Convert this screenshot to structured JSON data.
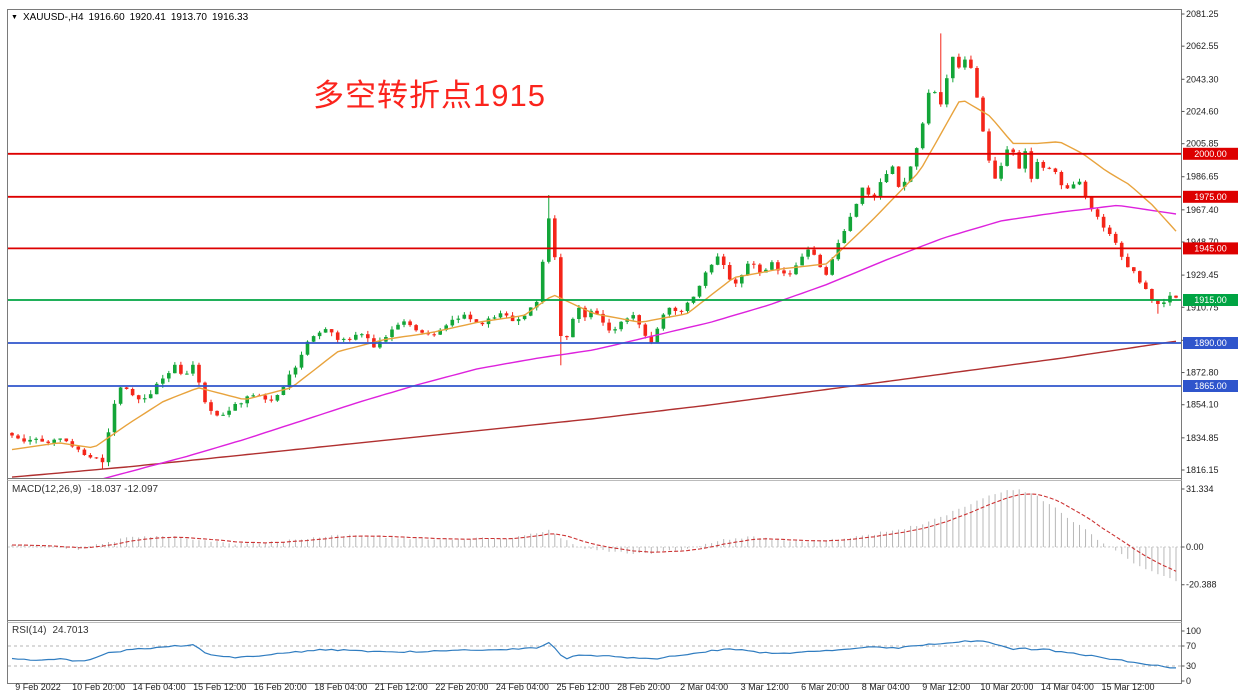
{
  "header": {
    "collapse_icon": "▼",
    "symbol_period": "XAUUSD-,H4",
    "open": "1916.60",
    "high": "1920.41",
    "low": "1913.70",
    "close": "1916.33"
  },
  "annotation": {
    "text": "多空转折点1915",
    "color": "#fb241d"
  },
  "price_axis": {
    "max": 2081.25,
    "min": 1816.15,
    "labels": [
      2081.25,
      2062.55,
      2043.3,
      2024.6,
      2005.85,
      1986.65,
      1967.4,
      1948.7,
      1929.45,
      1910.75,
      1891.55,
      1872.8,
      1854.1,
      1834.85,
      1816.15
    ]
  },
  "levels": [
    {
      "price": 2000.0,
      "label": "2000.00",
      "color": "#dd0000"
    },
    {
      "price": 1975.0,
      "label": "1975.00",
      "color": "#dd0000"
    },
    {
      "price": 1945.0,
      "label": "1945.00",
      "color": "#dd0000"
    },
    {
      "price": 1915.0,
      "label": "1915.00",
      "color": "#00a443"
    },
    {
      "price": 1890.0,
      "label": "1890.00",
      "color": "#2f55cc"
    },
    {
      "price": 1865.0,
      "label": "1865.00",
      "color": "#2f55cc"
    }
  ],
  "time_axis": {
    "labels": [
      "9 Feb 2022",
      "10 Feb 20:00",
      "14 Feb 04:00",
      "15 Feb 12:00",
      "16 Feb 20:00",
      "18 Feb 04:00",
      "21 Feb 12:00",
      "22 Feb 20:00",
      "24 Feb 04:00",
      "25 Feb 12:00",
      "28 Feb 20:00",
      "2 Mar 04:00",
      "3 Mar 12:00",
      "6 Mar 20:00",
      "8 Mar 04:00",
      "9 Mar 12:00",
      "10 Mar 20:00",
      "14 Mar 04:00",
      "15 Mar 12:00"
    ]
  },
  "macd_panel": {
    "label": "MACD(12,26,9)",
    "values": "-18.037 -12.097",
    "scale": [
      {
        "value": 31.334,
        "label": "31.334"
      },
      {
        "value": 0,
        "label": "0.00"
      },
      {
        "value": -20.388,
        "label": "-20.388"
      }
    ]
  },
  "rsi_panel": {
    "label": "RSI(14)",
    "value": "24.7013",
    "scale": [
      {
        "value": 100,
        "label": "100"
      },
      {
        "value": 70,
        "label": "70"
      },
      {
        "value": 30,
        "label": "30"
      },
      {
        "value": 0,
        "label": "0"
      }
    ],
    "guide_levels": [
      70,
      30
    ]
  },
  "chart_data": {
    "type": "candlestick",
    "symbol": "XAUUSD-",
    "timeframe": "H4",
    "bars": 194,
    "last_close": 1916.33,
    "ylim": [
      1816.15,
      2081.25
    ],
    "price_path": [
      [
        0,
        1836
      ],
      [
        0.01,
        1834
      ],
      [
        0.02,
        1836
      ],
      [
        0.03,
        1833
      ],
      [
        0.04,
        1835
      ],
      [
        0.05,
        1830
      ],
      [
        0.06,
        1826
      ],
      [
        0.07,
        1824
      ],
      [
        0.078,
        1821
      ],
      [
        0.085,
        1845
      ],
      [
        0.092,
        1866
      ],
      [
        0.1,
        1862
      ],
      [
        0.11,
        1856
      ],
      [
        0.12,
        1862
      ],
      [
        0.13,
        1870
      ],
      [
        0.14,
        1878
      ],
      [
        0.148,
        1871
      ],
      [
        0.155,
        1879
      ],
      [
        0.163,
        1860
      ],
      [
        0.17,
        1850
      ],
      [
        0.18,
        1848
      ],
      [
        0.19,
        1853
      ],
      [
        0.2,
        1858
      ],
      [
        0.21,
        1862
      ],
      [
        0.22,
        1856
      ],
      [
        0.23,
        1862
      ],
      [
        0.24,
        1872
      ],
      [
        0.25,
        1886
      ],
      [
        0.26,
        1896
      ],
      [
        0.27,
        1899
      ],
      [
        0.28,
        1890
      ],
      [
        0.29,
        1893
      ],
      [
        0.3,
        1897
      ],
      [
        0.31,
        1888
      ],
      [
        0.32,
        1894
      ],
      [
        0.33,
        1899
      ],
      [
        0.34,
        1902
      ],
      [
        0.35,
        1896
      ],
      [
        0.36,
        1893
      ],
      [
        0.37,
        1898
      ],
      [
        0.38,
        1903
      ],
      [
        0.39,
        1906
      ],
      [
        0.4,
        1900
      ],
      [
        0.41,
        1904
      ],
      [
        0.42,
        1908
      ],
      [
        0.43,
        1903
      ],
      [
        0.44,
        1907
      ],
      [
        0.45,
        1912
      ],
      [
        0.456,
        1936
      ],
      [
        0.461,
        1962
      ],
      [
        0.466,
        1944
      ],
      [
        0.47,
        1898
      ],
      [
        0.474,
        1884
      ],
      [
        0.48,
        1902
      ],
      [
        0.486,
        1912
      ],
      [
        0.492,
        1906
      ],
      [
        0.5,
        1910
      ],
      [
        0.508,
        1902
      ],
      [
        0.516,
        1896
      ],
      [
        0.524,
        1902
      ],
      [
        0.532,
        1907
      ],
      [
        0.54,
        1898
      ],
      [
        0.548,
        1890
      ],
      [
        0.556,
        1902
      ],
      [
        0.564,
        1912
      ],
      [
        0.572,
        1906
      ],
      [
        0.58,
        1912
      ],
      [
        0.588,
        1918
      ],
      [
        0.596,
        1930
      ],
      [
        0.604,
        1941
      ],
      [
        0.612,
        1934
      ],
      [
        0.62,
        1924
      ],
      [
        0.628,
        1932
      ],
      [
        0.636,
        1938
      ],
      [
        0.644,
        1930
      ],
      [
        0.652,
        1938
      ],
      [
        0.66,
        1932
      ],
      [
        0.668,
        1928
      ],
      [
        0.676,
        1936
      ],
      [
        0.684,
        1944
      ],
      [
        0.692,
        1938
      ],
      [
        0.7,
        1930
      ],
      [
        0.708,
        1944
      ],
      [
        0.716,
        1958
      ],
      [
        0.724,
        1968
      ],
      [
        0.732,
        1982
      ],
      [
        0.74,
        1972
      ],
      [
        0.748,
        1986
      ],
      [
        0.756,
        1992
      ],
      [
        0.762,
        1980
      ],
      [
        0.77,
        1988
      ],
      [
        0.778,
        2004
      ],
      [
        0.786,
        2030
      ],
      [
        0.791,
        2044
      ],
      [
        0.796,
        2022
      ],
      [
        0.802,
        2042
      ],
      [
        0.808,
        2056
      ],
      [
        0.814,
        2048
      ],
      [
        0.82,
        2058
      ],
      [
        0.826,
        2044
      ],
      [
        0.832,
        2020
      ],
      [
        0.838,
        1998
      ],
      [
        0.845,
        1986
      ],
      [
        0.852,
        1998
      ],
      [
        0.858,
        2006
      ],
      [
        0.864,
        1990
      ],
      [
        0.87,
        2002
      ],
      [
        0.876,
        1986
      ],
      [
        0.882,
        1996
      ],
      [
        0.888,
        1988
      ],
      [
        0.894,
        1994
      ],
      [
        0.9,
        1984
      ],
      [
        0.908,
        1978
      ],
      [
        0.916,
        1984
      ],
      [
        0.924,
        1972
      ],
      [
        0.932,
        1964
      ],
      [
        0.94,
        1956
      ],
      [
        0.948,
        1948
      ],
      [
        0.956,
        1938
      ],
      [
        0.964,
        1930
      ],
      [
        0.972,
        1922
      ],
      [
        0.98,
        1915
      ],
      [
        0.988,
        1911
      ],
      [
        0.994,
        1918
      ],
      [
        1,
        1916
      ]
    ],
    "spikes": [
      {
        "frac": 0.078,
        "low": 1817
      },
      {
        "frac": 0.461,
        "high": 1976
      },
      {
        "frac": 0.474,
        "low": 1877
      },
      {
        "frac": 0.796,
        "high": 2070
      },
      {
        "frac": 0.985,
        "low": 1907
      }
    ],
    "ma_fast": [
      [
        0,
        1828
      ],
      [
        0.04,
        1832
      ],
      [
        0.07,
        1829
      ],
      [
        0.1,
        1843
      ],
      [
        0.13,
        1856
      ],
      [
        0.16,
        1864
      ],
      [
        0.2,
        1857
      ],
      [
        0.24,
        1864
      ],
      [
        0.28,
        1885
      ],
      [
        0.32,
        1892
      ],
      [
        0.36,
        1896
      ],
      [
        0.4,
        1902
      ],
      [
        0.44,
        1906
      ],
      [
        0.465,
        1918
      ],
      [
        0.5,
        1907
      ],
      [
        0.54,
        1902
      ],
      [
        0.58,
        1907
      ],
      [
        0.62,
        1928
      ],
      [
        0.66,
        1933
      ],
      [
        0.7,
        1936
      ],
      [
        0.74,
        1962
      ],
      [
        0.78,
        1990
      ],
      [
        0.815,
        2032
      ],
      [
        0.84,
        2022
      ],
      [
        0.86,
        2006
      ],
      [
        0.88,
        2006
      ],
      [
        0.9,
        2007
      ],
      [
        0.92,
        2000
      ],
      [
        0.94,
        1990
      ],
      [
        0.96,
        1982
      ],
      [
        0.98,
        1970
      ],
      [
        1,
        1955
      ]
    ],
    "ma_mid": [
      [
        0,
        1797
      ],
      [
        0.05,
        1806
      ],
      [
        0.1,
        1815
      ],
      [
        0.15,
        1824
      ],
      [
        0.2,
        1834
      ],
      [
        0.25,
        1845
      ],
      [
        0.3,
        1856
      ],
      [
        0.35,
        1866
      ],
      [
        0.4,
        1875
      ],
      [
        0.45,
        1881
      ],
      [
        0.5,
        1886
      ],
      [
        0.55,
        1894
      ],
      [
        0.6,
        1902
      ],
      [
        0.65,
        1912
      ],
      [
        0.7,
        1924
      ],
      [
        0.75,
        1938
      ],
      [
        0.8,
        1951
      ],
      [
        0.85,
        1961
      ],
      [
        0.9,
        1966
      ],
      [
        0.95,
        1970
      ],
      [
        1,
        1965
      ]
    ],
    "ma_slow": [
      [
        0,
        1812
      ],
      [
        0.1,
        1818
      ],
      [
        0.2,
        1825
      ],
      [
        0.3,
        1832
      ],
      [
        0.4,
        1839
      ],
      [
        0.5,
        1846
      ],
      [
        0.6,
        1854
      ],
      [
        0.7,
        1863
      ],
      [
        0.8,
        1872
      ],
      [
        0.9,
        1881
      ],
      [
        1,
        1891
      ]
    ],
    "macd": [
      [
        0,
        1.5
      ],
      [
        0.03,
        0.5
      ],
      [
        0.06,
        -1
      ],
      [
        0.08,
        2
      ],
      [
        0.1,
        5
      ],
      [
        0.13,
        6.5
      ],
      [
        0.16,
        4
      ],
      [
        0.19,
        1.5
      ],
      [
        0.22,
        2.5
      ],
      [
        0.25,
        4.5
      ],
      [
        0.28,
        6.5
      ],
      [
        0.31,
        6
      ],
      [
        0.34,
        4.5
      ],
      [
        0.37,
        4
      ],
      [
        0.4,
        4.5
      ],
      [
        0.43,
        5
      ],
      [
        0.46,
        9
      ],
      [
        0.475,
        4
      ],
      [
        0.49,
        -1
      ],
      [
        0.52,
        -3
      ],
      [
        0.55,
        -3.5
      ],
      [
        0.58,
        -1
      ],
      [
        0.61,
        4
      ],
      [
        0.64,
        5.5
      ],
      [
        0.67,
        3
      ],
      [
        0.7,
        3.5
      ],
      [
        0.73,
        6
      ],
      [
        0.76,
        9
      ],
      [
        0.79,
        14
      ],
      [
        0.82,
        22
      ],
      [
        0.845,
        29
      ],
      [
        0.862,
        31
      ],
      [
        0.875,
        29
      ],
      [
        0.89,
        24
      ],
      [
        0.905,
        17
      ],
      [
        0.92,
        10
      ],
      [
        0.935,
        3
      ],
      [
        0.95,
        -3
      ],
      [
        0.965,
        -9
      ],
      [
        0.98,
        -14
      ],
      [
        1,
        -18.5
      ]
    ],
    "rsi": [
      [
        0,
        46
      ],
      [
        0.02,
        42
      ],
      [
        0.04,
        44
      ],
      [
        0.06,
        38
      ],
      [
        0.08,
        55
      ],
      [
        0.1,
        62
      ],
      [
        0.12,
        66
      ],
      [
        0.14,
        70
      ],
      [
        0.155,
        72
      ],
      [
        0.17,
        52
      ],
      [
        0.19,
        47
      ],
      [
        0.21,
        50
      ],
      [
        0.24,
        57
      ],
      [
        0.27,
        63
      ],
      [
        0.3,
        60
      ],
      [
        0.33,
        58
      ],
      [
        0.36,
        60
      ],
      [
        0.39,
        63
      ],
      [
        0.42,
        62
      ],
      [
        0.45,
        66
      ],
      [
        0.462,
        76
      ],
      [
        0.475,
        44
      ],
      [
        0.49,
        53
      ],
      [
        0.51,
        50
      ],
      [
        0.53,
        47
      ],
      [
        0.55,
        44
      ],
      [
        0.57,
        50
      ],
      [
        0.6,
        60
      ],
      [
        0.62,
        64
      ],
      [
        0.64,
        58
      ],
      [
        0.66,
        55
      ],
      [
        0.68,
        58
      ],
      [
        0.7,
        60
      ],
      [
        0.72,
        64
      ],
      [
        0.74,
        68
      ],
      [
        0.76,
        66
      ],
      [
        0.78,
        72
      ],
      [
        0.8,
        76
      ],
      [
        0.82,
        80
      ],
      [
        0.84,
        78
      ],
      [
        0.85,
        70
      ],
      [
        0.86,
        64
      ],
      [
        0.87,
        66
      ],
      [
        0.88,
        62
      ],
      [
        0.89,
        63
      ],
      [
        0.9,
        58
      ],
      [
        0.91,
        56
      ],
      [
        0.92,
        52
      ],
      [
        0.93,
        50
      ],
      [
        0.94,
        46
      ],
      [
        0.95,
        42
      ],
      [
        0.96,
        38
      ],
      [
        0.97,
        36
      ],
      [
        0.98,
        32
      ],
      [
        0.99,
        28
      ],
      [
        1,
        25
      ]
    ],
    "colors": {
      "bull": "#13a538",
      "bear": "#f42519",
      "ma_fast": "#e8a33d",
      "ma_mid": "#dd22dd",
      "ma_slow": "#b03030",
      "macd_hist": "#b8b8b8",
      "macd_signal": "#cc3333",
      "rsi": "#2f7cc0"
    }
  }
}
